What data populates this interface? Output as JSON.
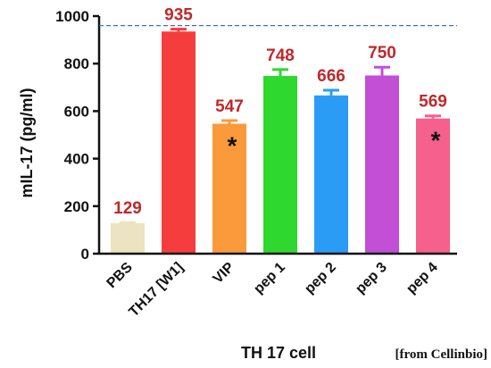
{
  "chart_data": {
    "type": "bar",
    "categories": [
      "PBS",
      "TH17 [W1]",
      "VIP",
      "pep 1",
      "pep 2",
      "pep 3",
      "pep 4"
    ],
    "values": [
      129,
      935,
      547,
      748,
      666,
      750,
      569
    ],
    "value_labels": [
      "129",
      "935",
      "547",
      "748",
      "666",
      "750",
      "569"
    ],
    "error_upper": [
      131,
      945,
      560,
      775,
      688,
      785,
      580
    ],
    "significance": [
      "",
      "",
      "*",
      "",
      "",
      "",
      "*"
    ],
    "bar_colors": [
      "#ece3c0",
      "#f53d3d",
      "#fa9a3a",
      "#2ed82e",
      "#2a9cf5",
      "#c24fd6",
      "#f5608c"
    ],
    "ylabel": "mIL-17 (pg/ml)",
    "xlabel": "TH 17 cell",
    "ylim": [
      0,
      1000
    ],
    "yticks": [
      0,
      200,
      400,
      600,
      800,
      1000
    ],
    "reference_line": 960,
    "reference_line_color": "#3f6fd0",
    "value_label_color": "#c0282a",
    "grid": false,
    "legend": "none"
  },
  "credit": "[from Cellinbio]"
}
